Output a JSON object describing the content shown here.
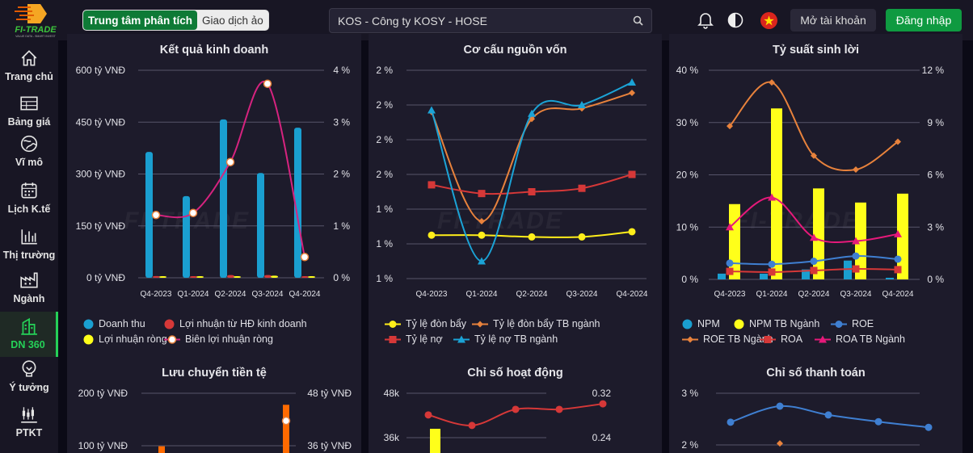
{
  "header": {
    "logo_text": "FI-TRADE",
    "logo_tagline": "VALUE DATA - SMART INVEST",
    "mode_toggle": [
      {
        "label": "Trung tâm phân tích",
        "active": true
      },
      {
        "label": "Giao dịch ảo",
        "active": false
      }
    ],
    "search_value": "KOS - Công ty KOSY - HOSE",
    "icons": [
      "bell-icon",
      "contrast-icon",
      "vietnam-flag-icon"
    ],
    "open_account": "Mở tài khoản",
    "login": "Đăng nhập"
  },
  "sidebar": {
    "items": [
      {
        "label": "Trang chủ",
        "icon": "home-icon"
      },
      {
        "label": "Bảng giá",
        "icon": "table-icon"
      },
      {
        "label": "Vĩ mô",
        "icon": "globe-icon"
      },
      {
        "label": "Lịch K.tế",
        "icon": "calendar-icon"
      },
      {
        "label": "Thị trường",
        "icon": "bar-chart-icon"
      },
      {
        "label": "Ngành",
        "icon": "factory-icon"
      },
      {
        "label": "DN 360",
        "icon": "building-icon",
        "active": true
      },
      {
        "label": "Ý tưởng",
        "icon": "lightbulb-icon"
      },
      {
        "label": "PTKT",
        "icon": "candlestick-icon"
      }
    ]
  },
  "colors": {
    "accent": "#25d158",
    "panel": "#1d1b2b",
    "login": "#0f9a41"
  },
  "chart_data": [
    {
      "title": "Kết quả kinh doanh",
      "type": "bar+line",
      "categories": [
        "Q4-2023",
        "Q1-2024",
        "Q2-2024",
        "Q3-2024",
        "Q4-2024"
      ],
      "y_left": {
        "ticks": [
          "600 tỷ VNĐ",
          "450 tỷ VNĐ",
          "300 tỷ VNĐ",
          "150 tỷ VNĐ",
          "0 tỷ VNĐ"
        ],
        "lim": [
          0,
          600
        ]
      },
      "y_right": {
        "ticks": [
          "4 %",
          "3 %",
          "2 %",
          "1 %",
          "0 %"
        ],
        "lim": [
          0,
          4
        ]
      },
      "series": [
        {
          "name": "Doanh thu",
          "kind": "bar",
          "axis": "left",
          "color": "#1a9fd0",
          "values": [
            364,
            236,
            458,
            303,
            434
          ]
        },
        {
          "name": "Lợi nhuận từ HĐ kinh doanh",
          "kind": "bar",
          "axis": "left",
          "color": "#d63838",
          "values": [
            5,
            1,
            8,
            8,
            0
          ]
        },
        {
          "name": "Lợi nhuận ròng",
          "kind": "bar",
          "axis": "left",
          "color": "#ffff1a",
          "values": [
            2,
            0,
            4,
            6,
            0
          ]
        },
        {
          "name": "Biên lợi nhuận ròng",
          "kind": "line",
          "axis": "right",
          "color": "#d6237f",
          "marker": "ring",
          "values": [
            1.21,
            1.25,
            2.23,
            3.74,
            0.4
          ]
        }
      ],
      "grid": true,
      "legend": "bottom"
    },
    {
      "title": "Cơ cấu nguồn vốn",
      "type": "line",
      "categories": [
        "Q4-2023",
        "Q1-2024",
        "Q2-2024",
        "Q3-2024",
        "Q4-2024"
      ],
      "y_left": {
        "ticks": [
          "2 %",
          "2 %",
          "2 %",
          "2 %",
          "1 %",
          "1 %",
          "1 %"
        ],
        "lim": [
          0.8,
          2.0
        ]
      },
      "series": [
        {
          "name": "Tỷ lệ đòn bẩy",
          "kind": "line",
          "axis": "left",
          "color": "#ffee1a",
          "marker": "circle",
          "values": [
            1.05,
            1.05,
            1.04,
            1.04,
            1.07
          ]
        },
        {
          "name": "Tỷ lệ đòn bẩy TB ngành",
          "kind": "line",
          "axis": "left",
          "color": "#e8823c",
          "marker": "diamond",
          "values": [
            1.76,
            1.13,
            1.72,
            1.78,
            1.87
          ]
        },
        {
          "name": "Tỷ lệ nợ",
          "kind": "line",
          "axis": "left",
          "color": "#d63838",
          "marker": "square",
          "values": [
            1.34,
            1.29,
            1.3,
            1.32,
            1.4
          ]
        },
        {
          "name": "Tỷ lệ nợ TB ngành",
          "kind": "line",
          "axis": "left",
          "color": "#1ba3d6",
          "marker": "triangle",
          "values": [
            1.77,
            0.9,
            1.75,
            1.8,
            1.93
          ]
        }
      ],
      "grid": true,
      "legend": "bottom"
    },
    {
      "title": "Tỷ suất sinh lời",
      "type": "bar+line",
      "categories": [
        "Q4-2023",
        "Q1-2024",
        "Q2-2024",
        "Q3-2024",
        "Q4-2024"
      ],
      "y_left": {
        "ticks": [
          "40 %",
          "30 %",
          "20 %",
          "10 %",
          "0 %"
        ],
        "lim": [
          0,
          40
        ]
      },
      "y_right": {
        "ticks": [
          "12 %",
          "9 %",
          "6 %",
          "3 %",
          "0 %"
        ],
        "lim": [
          0,
          12
        ]
      },
      "series": [
        {
          "name": "NPM",
          "kind": "bar",
          "axis": "left",
          "color": "#1a9fd0",
          "values": [
            1.1,
            1.1,
            1.9,
            3.6,
            0.3
          ]
        },
        {
          "name": "NPM TB Ngành",
          "kind": "bar",
          "axis": "left",
          "color": "#ffff1a",
          "values": [
            14.4,
            32.7,
            17.4,
            14.7,
            16.4
          ]
        },
        {
          "name": "ROE",
          "kind": "line",
          "axis": "right",
          "color": "#3f7fd1",
          "marker": "circle",
          "values": [
            0.93,
            0.87,
            1.04,
            1.34,
            1.16
          ]
        },
        {
          "name": "ROE TB Ngành",
          "kind": "line",
          "axis": "right",
          "color": "#e8823c",
          "marker": "diamond",
          "values": [
            8.8,
            11.3,
            7.1,
            6.3,
            7.9
          ]
        },
        {
          "name": "ROA",
          "kind": "line",
          "axis": "right",
          "color": "#d63838",
          "marker": "square",
          "values": [
            0.46,
            0.42,
            0.51,
            0.6,
            0.56
          ]
        },
        {
          "name": "ROA TB Ngành",
          "kind": "line",
          "axis": "right",
          "color": "#e6197a",
          "marker": "triangle",
          "values": [
            3.0,
            4.7,
            2.4,
            2.2,
            2.6
          ]
        }
      ],
      "grid": true,
      "legend": "bottom"
    },
    {
      "title": "Lưu chuyển tiền tệ",
      "type": "bar+line",
      "y_left": {
        "ticks": [
          "200 tỷ VNĐ",
          "100 tỷ VNĐ"
        ],
        "lim": [
          0,
          200
        ]
      },
      "y_right": {
        "ticks": [
          "48 tỷ VNĐ",
          "36 tỷ VNĐ"
        ],
        "lim": [
          24,
          48
        ]
      },
      "series": [
        {
          "kind": "bar",
          "axis": "left",
          "color": "#ff6a00",
          "values": [
            99,
            null,
            null,
            null,
            178
          ]
        },
        {
          "kind": "line",
          "axis": "right",
          "color": "#e04848",
          "marker": "ring",
          "values": [
            null,
            null,
            null,
            null,
            41.7
          ]
        }
      ],
      "grid": true
    },
    {
      "title": "Chỉ số hoạt động",
      "type": "bar+line",
      "y_left": {
        "ticks": [
          "48k",
          "36k"
        ],
        "lim": [
          24000,
          48000
        ]
      },
      "y_right": {
        "ticks": [
          "0.32",
          "0.24"
        ],
        "lim": [
          0.16,
          0.32
        ]
      },
      "series": [
        {
          "kind": "bar",
          "axis": "left",
          "color": "#ffff1a",
          "values": [
            38400,
            null,
            null,
            null,
            null
          ]
        },
        {
          "kind": "line",
          "axis": "right",
          "color": "#d63838",
          "marker": "circle",
          "values": [
            0.281,
            0.262,
            0.291,
            0.291,
            0.301
          ]
        }
      ],
      "grid": true
    },
    {
      "title": "Chỉ số thanh toán",
      "type": "line",
      "y_left": {
        "ticks": [
          "3 %",
          "2 %"
        ],
        "lim": [
          1,
          3
        ]
      },
      "series": [
        {
          "kind": "line",
          "axis": "left",
          "color": "#3f7fd1",
          "marker": "circle",
          "values": [
            2.44,
            2.75,
            2.58,
            2.45,
            2.34
          ]
        },
        {
          "kind": "line",
          "axis": "left",
          "color": "#e8823c",
          "marker": "diamond",
          "values": [
            null,
            2.03,
            null,
            null,
            null
          ]
        }
      ],
      "grid": true
    }
  ]
}
